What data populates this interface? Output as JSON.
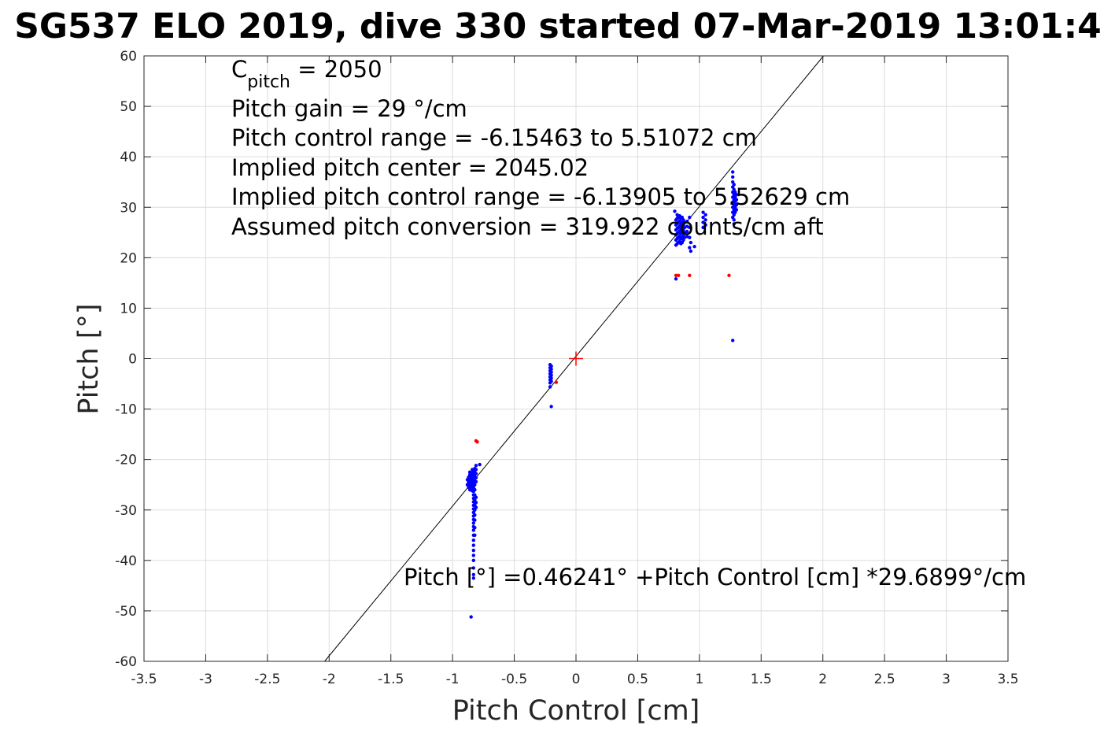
{
  "chart_data": {
    "type": "scatter",
    "title": "SG537 ELO 2019, dive 330 started 07-Mar-2019 13:01:4",
    "xlabel": "Pitch Control [cm]",
    "ylabel": "Pitch [°]",
    "xlim": [
      -3.5,
      3.5
    ],
    "ylim": [
      -60,
      60
    ],
    "xticks": [
      -3.5,
      -3,
      -2.5,
      -2,
      -1.5,
      -1,
      -0.5,
      0,
      0.5,
      1,
      1.5,
      2,
      2.5,
      3,
      3.5
    ],
    "xtick_labels": [
      "-3.5",
      "-3",
      "-2.5",
      "-2",
      "-1.5",
      "-1",
      "-0.5",
      "0",
      "0.5",
      "1",
      "1.5",
      "2",
      "2.5",
      "3",
      "3.5"
    ],
    "yticks": [
      -60,
      -50,
      -40,
      -30,
      -20,
      -10,
      0,
      10,
      20,
      30,
      40,
      50,
      60
    ],
    "ytick_labels": [
      "-60",
      "-50",
      "-40",
      "-30",
      "-20",
      "-10",
      "0",
      "10",
      "20",
      "30",
      "40",
      "50",
      "60"
    ],
    "grid": true,
    "colors": {
      "good": "#0000ff",
      "bad": "#ff0000",
      "fit": "#000000",
      "center": "#ff0000",
      "grid": "#dcdcdc",
      "axes": "#262626"
    },
    "annotations": {
      "c_pitch_base": "C",
      "c_pitch_sub": "pitch",
      "c_pitch_value": " = 2050",
      "pitch_gain": "Pitch gain = 29 °/cm",
      "pitch_control_range": "Pitch control range = -6.15463 to 5.51072 cm",
      "implied_pitch_center": "Implied pitch center = 2045.02",
      "implied_pitch_control_range": "Implied pitch control range = -6.13905 to 5.52629 cm",
      "assumed_pitch_conversion": "Assumed pitch conversion = 319.922 counts/cm aft",
      "fit_equation": "Pitch [°] =0.46241° +Pitch Control [cm] *29.6899°/cm"
    },
    "fit": {
      "intercept": 0.46241,
      "slope": 29.6899
    },
    "center_marker": {
      "x": 0,
      "y": 0
    },
    "series": [
      {
        "style": "blue-dots",
        "points": [
          [
            -0.86,
            -22.5
          ],
          [
            -0.86,
            -23.0
          ],
          [
            -0.86,
            -23.6
          ],
          [
            -0.86,
            -24.2
          ],
          [
            -0.86,
            -24.8
          ],
          [
            -0.86,
            -25.4
          ],
          [
            -0.86,
            -26.0
          ],
          [
            -0.85,
            -22.8
          ],
          [
            -0.85,
            -23.4
          ],
          [
            -0.85,
            -24.0
          ],
          [
            -0.85,
            -24.6
          ],
          [
            -0.85,
            -25.2
          ],
          [
            -0.84,
            -22.0
          ],
          [
            -0.84,
            -22.6
          ],
          [
            -0.84,
            -23.2
          ],
          [
            -0.84,
            -23.8
          ],
          [
            -0.84,
            -24.4
          ],
          [
            -0.84,
            -25.0
          ],
          [
            -0.84,
            -25.6
          ],
          [
            -0.84,
            -26.2
          ],
          [
            -0.83,
            -22.3
          ],
          [
            -0.83,
            -23.1
          ],
          [
            -0.83,
            -23.9
          ],
          [
            -0.83,
            -24.7
          ],
          [
            -0.83,
            -25.5
          ],
          [
            -0.83,
            -26.3
          ],
          [
            -0.83,
            -27.0
          ],
          [
            -0.83,
            -27.7
          ],
          [
            -0.83,
            -28.4
          ],
          [
            -0.83,
            -29.1
          ],
          [
            -0.83,
            -29.8
          ],
          [
            -0.83,
            -30.5
          ],
          [
            -0.83,
            -31.2
          ],
          [
            -0.83,
            -31.9
          ],
          [
            -0.83,
            -32.6
          ],
          [
            -0.83,
            -33.3
          ],
          [
            -0.83,
            -34.0
          ],
          [
            -0.83,
            -35.0
          ],
          [
            -0.83,
            -36.0
          ],
          [
            -0.83,
            -37.0
          ],
          [
            -0.83,
            -38.0
          ],
          [
            -0.83,
            -39.0
          ],
          [
            -0.83,
            -40.0
          ],
          [
            -0.83,
            -41.5
          ],
          [
            -0.83,
            -42.8
          ],
          [
            -0.83,
            -43.5
          ],
          [
            -0.82,
            -21.8
          ],
          [
            -0.82,
            -22.6
          ],
          [
            -0.82,
            -23.4
          ],
          [
            -0.82,
            -24.2
          ],
          [
            -0.82,
            -25.0
          ],
          [
            -0.82,
            -26.0
          ],
          [
            -0.82,
            -27.0
          ],
          [
            -0.82,
            -28.0
          ],
          [
            -0.82,
            -29.0
          ],
          [
            -0.82,
            -30.0
          ],
          [
            -0.82,
            -31.0
          ],
          [
            -0.82,
            -32.0
          ],
          [
            -0.82,
            -33.5
          ],
          [
            -0.82,
            -35.0
          ],
          [
            -0.81,
            -21.2
          ],
          [
            -0.81,
            -22.0
          ],
          [
            -0.81,
            -22.8
          ],
          [
            -0.81,
            -23.6
          ],
          [
            -0.81,
            -24.4
          ],
          [
            -0.81,
            -27.5
          ],
          [
            -0.81,
            -28.5
          ],
          [
            -0.81,
            -29.5
          ],
          [
            -0.87,
            -23.5
          ],
          [
            -0.87,
            -24.5
          ],
          [
            -0.87,
            -25.5
          ],
          [
            -0.88,
            -24.0
          ],
          [
            -0.88,
            -25.0
          ],
          [
            -0.78,
            -21.0
          ],
          [
            -0.85,
            -51.2
          ],
          [
            -0.21,
            -1.2
          ],
          [
            -0.21,
            -1.8
          ],
          [
            -0.21,
            -2.4
          ],
          [
            -0.21,
            -3.0
          ],
          [
            -0.21,
            -3.6
          ],
          [
            -0.21,
            -4.2
          ],
          [
            -0.21,
            -4.8
          ],
          [
            -0.2,
            -1.5
          ],
          [
            -0.2,
            -2.1
          ],
          [
            -0.2,
            -2.7
          ],
          [
            -0.2,
            -3.3
          ],
          [
            -0.2,
            -3.9
          ],
          [
            -0.2,
            -4.5
          ],
          [
            -0.21,
            -5.6
          ],
          [
            -0.2,
            -9.5
          ],
          [
            0.8,
            29.2
          ],
          [
            0.81,
            27.5
          ],
          [
            0.81,
            26.5
          ],
          [
            0.81,
            25.5
          ],
          [
            0.81,
            24.5
          ],
          [
            0.81,
            23.5
          ],
          [
            0.81,
            22.5
          ],
          [
            0.82,
            28.5
          ],
          [
            0.82,
            27.8
          ],
          [
            0.82,
            26.8
          ],
          [
            0.82,
            25.8
          ],
          [
            0.82,
            24.8
          ],
          [
            0.82,
            23.8
          ],
          [
            0.82,
            22.8
          ],
          [
            0.83,
            28.0
          ],
          [
            0.83,
            27.0
          ],
          [
            0.83,
            26.0
          ],
          [
            0.83,
            25.0
          ],
          [
            0.83,
            24.0
          ],
          [
            0.83,
            23.0
          ],
          [
            0.84,
            28.3
          ],
          [
            0.84,
            27.3
          ],
          [
            0.84,
            26.3
          ],
          [
            0.84,
            25.3
          ],
          [
            0.84,
            24.3
          ],
          [
            0.84,
            23.3
          ],
          [
            0.85,
            27.8
          ],
          [
            0.85,
            26.8
          ],
          [
            0.85,
            25.8
          ],
          [
            0.85,
            24.8
          ],
          [
            0.85,
            23.8
          ],
          [
            0.85,
            22.8
          ],
          [
            0.86,
            28.0
          ],
          [
            0.86,
            27.0
          ],
          [
            0.86,
            26.0
          ],
          [
            0.86,
            25.0
          ],
          [
            0.86,
            24.0
          ],
          [
            0.86,
            23.0
          ],
          [
            0.87,
            27.5
          ],
          [
            0.87,
            26.5
          ],
          [
            0.87,
            25.5
          ],
          [
            0.87,
            24.5
          ],
          [
            0.87,
            23.5
          ],
          [
            0.88,
            27.0
          ],
          [
            0.88,
            26.0
          ],
          [
            0.88,
            25.0
          ],
          [
            0.88,
            24.0
          ],
          [
            0.9,
            27.2
          ],
          [
            0.9,
            26.2
          ],
          [
            0.9,
            25.2
          ],
          [
            0.9,
            24.2
          ],
          [
            0.92,
            28.0
          ],
          [
            0.92,
            26.0
          ],
          [
            0.92,
            24.0
          ],
          [
            0.92,
            22.0
          ],
          [
            0.93,
            21.3
          ],
          [
            0.93,
            23.0
          ],
          [
            0.96,
            22.2
          ],
          [
            0.81,
            15.8
          ],
          [
            1.03,
            29.0
          ],
          [
            1.03,
            28.0
          ],
          [
            1.03,
            27.0
          ],
          [
            1.03,
            26.0
          ],
          [
            1.05,
            28.5
          ],
          [
            1.05,
            27.5
          ],
          [
            1.05,
            26.5
          ],
          [
            1.27,
            37.0
          ],
          [
            1.27,
            36.0
          ],
          [
            1.27,
            35.0
          ],
          [
            1.27,
            34.0
          ],
          [
            1.27,
            33.0
          ],
          [
            1.27,
            32.0
          ],
          [
            1.27,
            31.0
          ],
          [
            1.27,
            30.0
          ],
          [
            1.27,
            29.0
          ],
          [
            1.27,
            28.0
          ],
          [
            1.28,
            34.5
          ],
          [
            1.28,
            33.5
          ],
          [
            1.28,
            32.5
          ],
          [
            1.28,
            31.5
          ],
          [
            1.28,
            30.5
          ],
          [
            1.28,
            29.5
          ],
          [
            1.28,
            28.5
          ],
          [
            1.28,
            27.5
          ],
          [
            1.29,
            33.0
          ],
          [
            1.29,
            32.0
          ],
          [
            1.29,
            31.0
          ],
          [
            1.29,
            30.0
          ],
          [
            1.29,
            29.0
          ],
          [
            1.3,
            32.5
          ],
          [
            1.3,
            31.5
          ],
          [
            1.3,
            30.5
          ],
          [
            1.3,
            29.5
          ],
          [
            1.28,
            26.7
          ],
          [
            1.27,
            3.6
          ]
        ]
      },
      {
        "style": "red-dots",
        "points": [
          [
            -0.81,
            -16.3
          ],
          [
            -0.8,
            -16.5
          ],
          [
            -0.16,
            -4.7
          ],
          [
            0.81,
            16.5
          ],
          [
            0.83,
            16.5
          ],
          [
            0.92,
            16.5
          ],
          [
            1.24,
            16.5
          ]
        ]
      }
    ]
  }
}
